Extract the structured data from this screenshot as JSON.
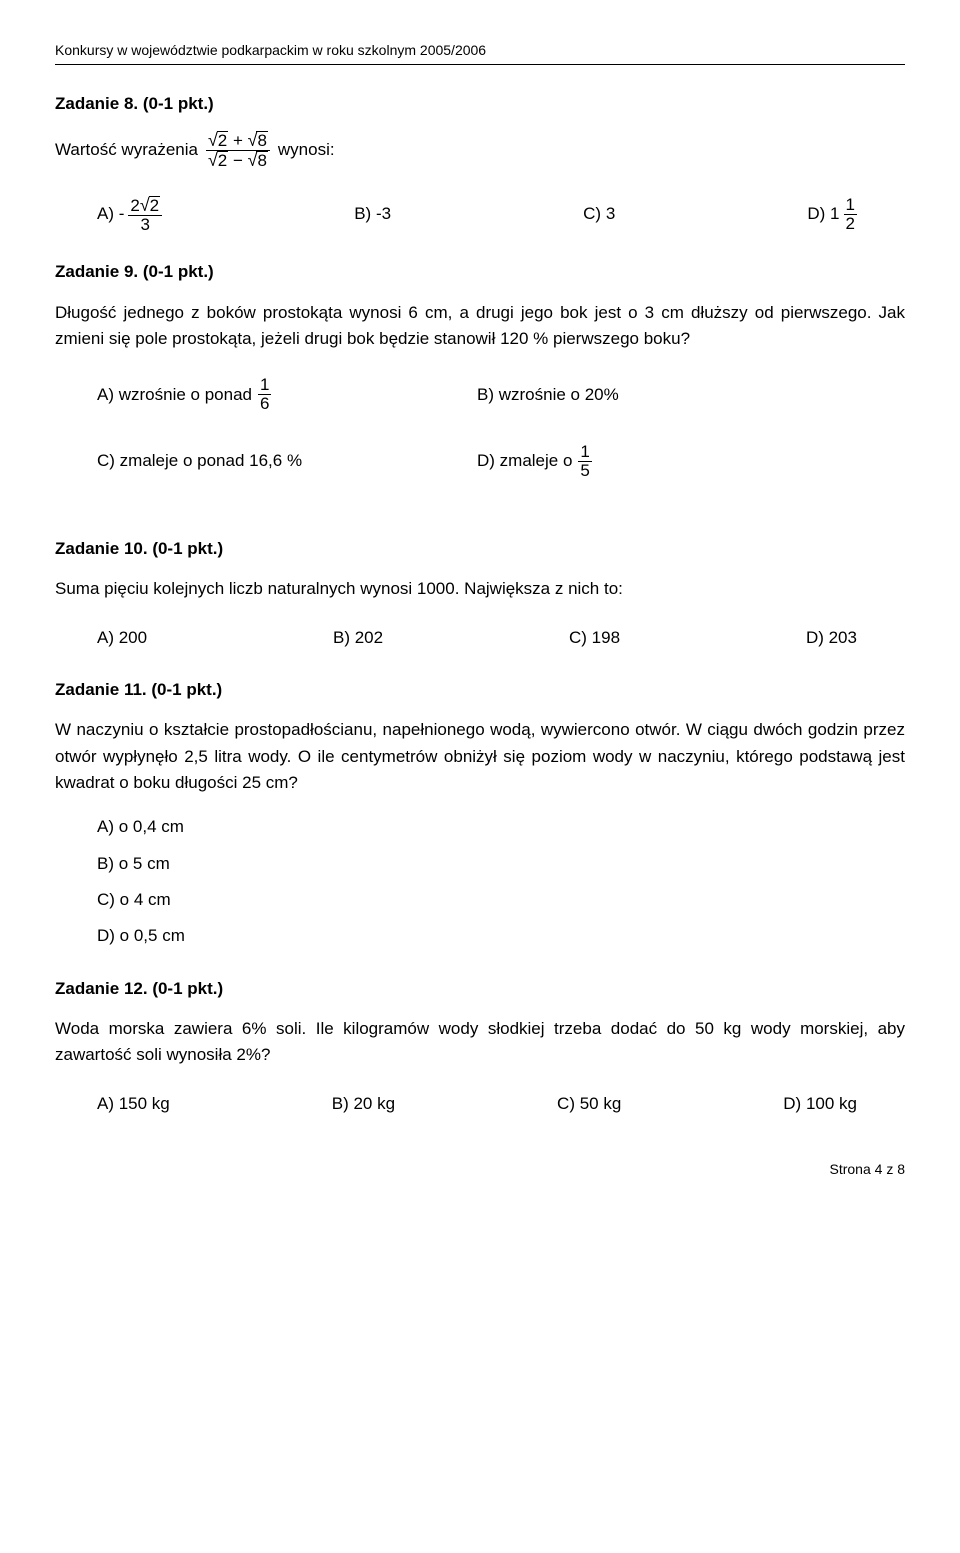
{
  "header": "Konkursy w województwie podkarpackim w roku szkolnym 2005/2006",
  "task8": {
    "title": "Zadanie 8. (0-1 pkt.)",
    "lead_pre": "Wartość wyrażenia",
    "lead_post": "wynosi:",
    "expr_num_a": "2",
    "expr_num_op": "+",
    "expr_num_b": "8",
    "expr_den_a": "2",
    "expr_den_op": "−",
    "expr_den_b": "8",
    "A_pre": "A) -",
    "A_rad": "2",
    "A_num_val": "2",
    "A_den": "3",
    "B": "B) -3",
    "C": "C) 3",
    "D_pre": "D) 1",
    "D_num": "1",
    "D_den": "2"
  },
  "task9": {
    "title": "Zadanie 9. (0-1 pkt.)",
    "para": "Długość jednego z boków prostokąta wynosi 6 cm, a drugi jego bok jest o 3 cm dłuższy od pierwszego. Jak zmieni się pole prostokąta, jeżeli drugi bok będzie stanowił 120 % pierwszego boku?",
    "A_pre": "A)  wzrośnie o ponad",
    "A_num": "1",
    "A_den": "6",
    "B": "B)  wzrośnie o 20%",
    "C": "C)  zmaleje o ponad 16,6 %",
    "D_pre": "D)  zmaleje o",
    "D_num": "1",
    "D_den": "5"
  },
  "task10": {
    "title": "Zadanie 10. (0-1 pkt.)",
    "para": "Suma pięciu kolejnych liczb naturalnych wynosi 1000. Największa z nich to:",
    "A": "A) 200",
    "B": "B) 202",
    "C": "C) 198",
    "D": "D) 203"
  },
  "task11": {
    "title": "Zadanie 11. (0-1 pkt.)",
    "para": "W naczyniu o kształcie prostopadłościanu, napełnionego wodą, wywiercono otwór. W ciągu dwóch godzin przez otwór wypłynęło 2,5 litra wody. O ile centymetrów obniżył się poziom wody w naczyniu, którego podstawą jest kwadrat o boku długości 25 cm?",
    "A": "A)  o 0,4 cm",
    "B": "B)  o 5 cm",
    "C": "C)  o 4 cm",
    "D": "D)  o 0,5 cm"
  },
  "task12": {
    "title": "Zadanie 12. (0-1 pkt.)",
    "para": "Woda morska zawiera 6% soli. Ile kilogramów wody słodkiej trzeba dodać do 50 kg wody morskiej, aby zawartość soli wynosiła 2%?",
    "A": "A) 150 kg",
    "B": "B) 20 kg",
    "C": "C) 50 kg",
    "D": "D) 100 kg"
  },
  "footer": "Strona 4 z 8"
}
